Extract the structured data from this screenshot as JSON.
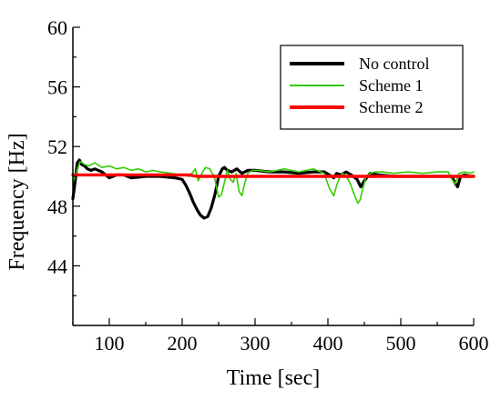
{
  "chart_data": {
    "type": "line",
    "title": "",
    "xlabel": "Time [sec]",
    "ylabel": "Frequency [Hz]",
    "xlim": [
      50,
      600
    ],
    "ylim": [
      40,
      60
    ],
    "x_ticks": [
      100,
      200,
      300,
      400,
      500,
      600
    ],
    "y_ticks": [
      44,
      48,
      52,
      56,
      60
    ],
    "grid": false,
    "legend_position": "top-right",
    "series": [
      {
        "name": "No control",
        "color": "#000000",
        "x": [
          50,
          53,
          56,
          59,
          62,
          66,
          70,
          75,
          80,
          90,
          100,
          110,
          120,
          130,
          150,
          170,
          190,
          200,
          205,
          210,
          215,
          220,
          225,
          230,
          235,
          240,
          245,
          250,
          255,
          258,
          262,
          268,
          275,
          282,
          290,
          300,
          320,
          340,
          360,
          380,
          395,
          402,
          408,
          412,
          418,
          425,
          432,
          440,
          445,
          450,
          458,
          470,
          490,
          510,
          530,
          550,
          565,
          570,
          574,
          578,
          582,
          588,
          595,
          600
        ],
        "values": [
          48.5,
          49.6,
          50.9,
          51.1,
          50.8,
          50.7,
          50.5,
          50.4,
          50.5,
          50.3,
          49.9,
          50.1,
          50.1,
          49.9,
          50.0,
          50.0,
          49.9,
          49.8,
          49.4,
          48.9,
          48.3,
          47.8,
          47.4,
          47.2,
          47.3,
          47.9,
          48.8,
          50.0,
          50.5,
          50.6,
          50.4,
          50.3,
          50.5,
          50.2,
          50.4,
          50.4,
          50.3,
          50.3,
          50.2,
          50.3,
          50.3,
          50.1,
          49.9,
          50.2,
          50.1,
          50.3,
          50.1,
          49.8,
          49.3,
          49.7,
          50.2,
          50.1,
          50.0,
          50.0,
          50.0,
          50.0,
          50.0,
          50.0,
          49.6,
          49.3,
          50.0,
          50.1,
          50.0,
          50.0
        ]
      },
      {
        "name": "Scheme 1",
        "color": "#33cc00",
        "x": [
          50,
          55,
          60,
          66,
          72,
          80,
          90,
          100,
          110,
          120,
          130,
          140,
          150,
          160,
          170,
          185,
          200,
          210,
          218,
          222,
          228,
          232,
          238,
          244,
          250,
          254,
          258,
          262,
          266,
          270,
          274,
          278,
          282,
          286,
          290,
          296,
          305,
          320,
          340,
          360,
          380,
          395,
          402,
          408,
          412,
          416,
          420,
          425,
          430,
          436,
          441,
          444,
          448,
          452,
          458,
          465,
          475,
          490,
          510,
          530,
          550,
          565,
          570,
          575,
          580,
          588,
          595,
          600
        ],
        "values": [
          49.6,
          50.3,
          51.0,
          50.8,
          50.7,
          50.9,
          50.6,
          50.7,
          50.5,
          50.6,
          50.4,
          50.5,
          50.3,
          50.4,
          50.3,
          50.2,
          50.1,
          50.0,
          50.5,
          49.7,
          50.3,
          50.6,
          50.5,
          50.0,
          48.6,
          48.8,
          49.6,
          50.4,
          49.8,
          49.6,
          50.2,
          49.0,
          48.7,
          49.6,
          50.2,
          50.4,
          50.4,
          50.3,
          50.5,
          50.3,
          50.5,
          50.2,
          49.2,
          48.7,
          49.4,
          49.9,
          50.2,
          50.0,
          49.6,
          48.8,
          48.2,
          48.4,
          49.2,
          49.9,
          50.2,
          50.3,
          50.3,
          50.2,
          50.3,
          50.2,
          50.3,
          50.3,
          49.8,
          49.5,
          50.2,
          50.3,
          50.2,
          50.3
        ]
      },
      {
        "name": "Scheme 2",
        "color": "#ff0000",
        "x": [
          50,
          100,
          150,
          200,
          210,
          220,
          240,
          260,
          300,
          400,
          500,
          600
        ],
        "values": [
          50.1,
          50.1,
          50.1,
          50.1,
          50.1,
          50.0,
          50.0,
          50.0,
          50.0,
          50.0,
          50.0,
          50.0
        ]
      }
    ]
  }
}
